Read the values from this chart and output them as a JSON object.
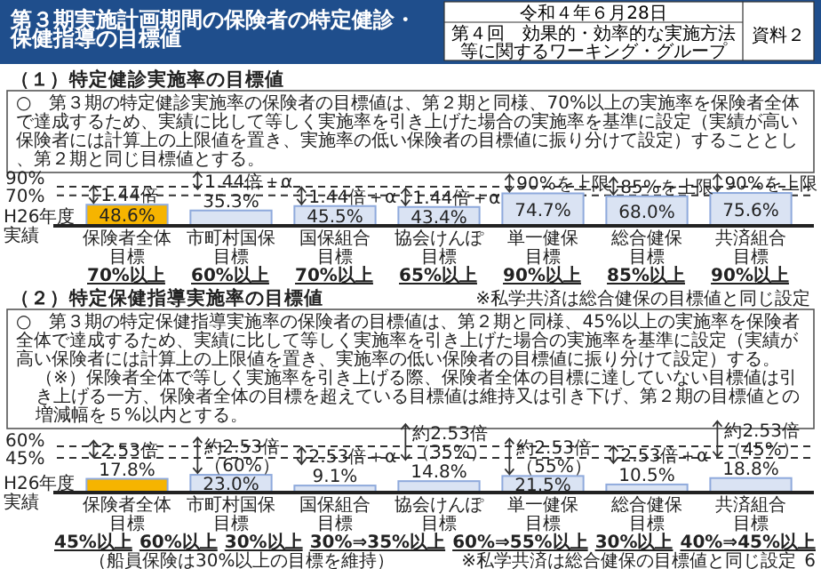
{
  "chart_data": [
    {
      "type": "bar",
      "title": "第３期実施計画期間の保険者の特定健診・保健指導の目標値",
      "subtitle": "（１）特定健診実施率の目標値",
      "ylabel": "H26年度実績",
      "categories": [
        "保険者全体",
        "市町村国保",
        "国保組合",
        "協会けんぽ",
        "単一健保",
        "総合健保",
        "共済組合"
      ],
      "values": [
        48.6,
        35.3,
        45.5,
        43.4,
        74.7,
        68.0,
        75.6
      ],
      "colors": [
        "#f6b400",
        "#dae3f3",
        "#dae3f3",
        "#dae3f3",
        "#dae3f3",
        "#dae3f3",
        "#dae3f3"
      ],
      "value_labels": [
        "48.6%",
        "35.3%",
        "45.5%",
        "43.4%",
        "74.7%",
        "68.0%",
        "75.6%"
      ],
      "tick_labels": "x",
      "ref_lines": [
        {
          "axis": "y",
          "value": 90,
          "label": "90%",
          "line_style": "dashed"
        },
        {
          "axis": "y",
          "value": 70,
          "label": "70%",
          "line_style": "dashed"
        }
      ],
      "annotations": [
        "令和４年６月28日",
        "第４回　効果的・効率的な実施方法等に関するワーキング・グループ",
        "資料２",
        "○　第３期の特定健診実施率の保険者の目標値は、第２期と同様、70%以上の実施率を保険者全体で達成するため、実績に比して等しく実施率を引き上げた場合の実施率を基準に設定（実績が高い保険者には計算上の上限値を置き、実施率の低い保険者の目標値に振り分けて設定）することとし、第２期と同じ目標値とする。",
        "※私学共済は総合健保の目標値と同じ設定",
        "目標",
        "目標",
        "目標",
        "目標",
        "目標",
        "目標",
        "目標",
        "70%以上",
        "60%以上",
        "70%以上",
        "65%以上",
        "90%以上",
        "85%以上",
        "90%以上",
        {
          "text": "1.44倍",
          "x": "保険者全体",
          "y": 48.6
        },
        {
          "text": "1.44倍＋α",
          "x": "市町村国保",
          "y": 35.3
        },
        {
          "text": "1.44倍＋α",
          "x": "国保組合",
          "y": 45.5
        },
        {
          "text": "1.44倍＋α",
          "x": "協会けんぽ",
          "y": 43.4
        },
        {
          "text": "90%を上限",
          "x": "単一健保",
          "y": 74.7
        },
        {
          "text": "85%を上限",
          "x": "総合健保",
          "y": 68.0
        },
        {
          "text": "90%を上限",
          "x": "共済組合",
          "y": 75.6
        }
      ]
    },
    {
      "type": "bar",
      "subtitle": "（２）特定保健指導実施率の目標値",
      "ylabel": "H26年度実績",
      "categories": [
        "保険者全体",
        "市町村国保",
        "国保組合",
        "協会けんぽ",
        "単一健保",
        "総合健保",
        "共済組合"
      ],
      "values": [
        17.8,
        23.0,
        9.1,
        14.8,
        21.5,
        10.5,
        18.8
      ],
      "colors": [
        "#f6b400",
        "#dae3f3",
        "#dae3f3",
        "#dae3f3",
        "#dae3f3",
        "#dae3f3",
        "#dae3f3"
      ],
      "value_labels": [
        "17.8%",
        "23.0%",
        "9.1%",
        "14.8%",
        "21.5%",
        "10.5%",
        "18.8%"
      ],
      "tick_labels": "x",
      "ref_lines": [
        {
          "axis": "y",
          "value": 60,
          "label": "60%",
          "line_style": "dashed"
        },
        {
          "axis": "y",
          "value": 45,
          "label": "45%",
          "line_style": "dashed"
        }
      ],
      "annotations": [
        "○　第３期の特定保健指導実施率の保険者の目標値は、第２期と同様、45%以上の実施率を保険者全体で達成するため、実績に比して等しく実施率を引き上げた場合の実施率を基準に設定（実績が高い保険者には計算上の上限値を置き、実施率の低い保険者の目標値に振り分けて設定）する。",
        "（※）保険者全体で等しく実施率を引き上げる際、保険者全体の目標に達していない目標値は引き上げる一方、保険者全体の目標を超えている目標値は維持又は引き下げ、第２期の目標値との増減幅を５%以内とする。",
        "（船員保険は30%以上の目標を維持）",
        "※私学共済は総合健保の目標値と同じ設定",
        "6",
        "目標",
        "目標",
        "目標",
        "目標",
        "目標",
        "目標",
        "目標",
        "45%以上",
        "60%以上",
        "30%以上",
        "30%⇒35%以上",
        "60%⇒55%以上",
        "30%以上",
        "40%⇒45%以上",
        {
          "text": "2.53倍",
          "x": "保険者全体",
          "y": 17.8
        },
        {
          "text": "約2.53倍（60%）",
          "x": "市町村国保",
          "y": 23.0
        },
        {
          "text": "2.53倍＋α",
          "x": "国保組合",
          "y": 9.1
        },
        {
          "text": "約2.53倍（35%）",
          "x": "協会けんぽ",
          "y": 14.8
        },
        {
          "text": "約2.53倍（55%）",
          "x": "単一健保",
          "y": 21.5
        },
        {
          "text": "2.53倍＋α",
          "x": "総合健保",
          "y": 10.5
        },
        {
          "text": "約2.53倍（45%）",
          "x": "共済組合",
          "y": 18.8
        }
      ]
    }
  ]
}
